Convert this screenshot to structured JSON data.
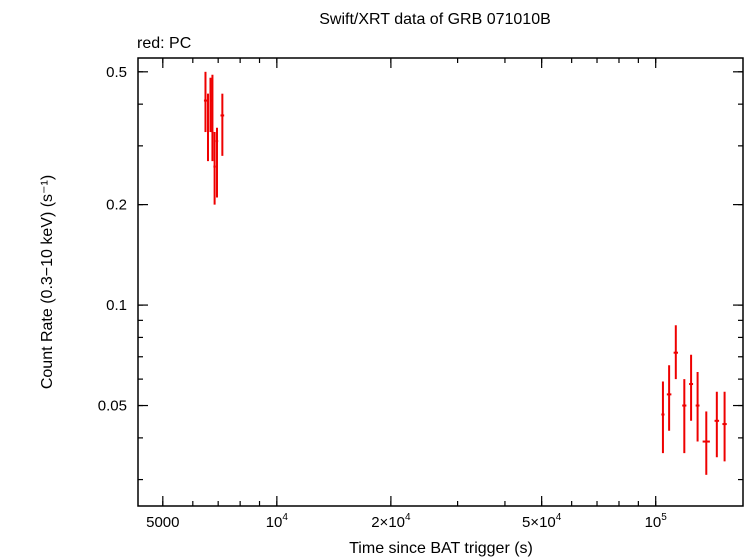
{
  "chart_data": {
    "type": "scatter",
    "title": "Swift/XRT data of GRB 071010B",
    "legend_text": "red: PC",
    "xlabel": "Time since BAT trigger (s)",
    "ylabel": "Count Rate (0.3−10 keV) (s⁻¹)",
    "x_scale": "log",
    "y_scale": "log",
    "xlim": [
      4300,
      170000
    ],
    "ylim": [
      0.025,
      0.55
    ],
    "grid": false,
    "x_ticks": [
      {
        "value": 5000,
        "label": "5000"
      },
      {
        "value": 10000,
        "base": "10",
        "exp": "4"
      },
      {
        "value": 20000,
        "base": "2×10",
        "exp": "4"
      },
      {
        "value": 50000,
        "base": "5×10",
        "exp": "4"
      },
      {
        "value": 100000,
        "base": "10",
        "exp": "5"
      }
    ],
    "y_ticks": [
      {
        "value": 0.5,
        "label": "0.5"
      },
      {
        "value": 0.2,
        "label": "0.2"
      },
      {
        "value": 0.1,
        "label": "0.1"
      },
      {
        "value": 0.05,
        "label": "0.05"
      }
    ],
    "series": [
      {
        "color": "#ee0000",
        "points": [
          {
            "x": 6480,
            "xlo": 6420,
            "xhi": 6540,
            "y": 0.41,
            "ylo": 0.33,
            "yhi": 0.5
          },
          {
            "x": 6580,
            "xlo": 6540,
            "xhi": 6620,
            "y": 0.34,
            "ylo": 0.27,
            "yhi": 0.43
          },
          {
            "x": 6680,
            "xlo": 6640,
            "xhi": 6720,
            "y": 0.41,
            "ylo": 0.33,
            "yhi": 0.48
          },
          {
            "x": 6760,
            "xlo": 6720,
            "xhi": 6800,
            "y": 0.33,
            "ylo": 0.27,
            "yhi": 0.49
          },
          {
            "x": 6850,
            "xlo": 6800,
            "xhi": 6900,
            "y": 0.26,
            "ylo": 0.2,
            "yhi": 0.33
          },
          {
            "x": 6950,
            "xlo": 6900,
            "xhi": 7000,
            "y": 0.31,
            "ylo": 0.21,
            "yhi": 0.34
          },
          {
            "x": 7180,
            "xlo": 7100,
            "xhi": 7260,
            "y": 0.37,
            "ylo": 0.28,
            "yhi": 0.43
          },
          {
            "x": 104500,
            "xlo": 103500,
            "xhi": 105500,
            "y": 0.047,
            "ylo": 0.036,
            "yhi": 0.059
          },
          {
            "x": 108500,
            "xlo": 107000,
            "xhi": 110000,
            "y": 0.054,
            "ylo": 0.042,
            "yhi": 0.066
          },
          {
            "x": 113000,
            "xlo": 111500,
            "xhi": 114500,
            "y": 0.072,
            "ylo": 0.06,
            "yhi": 0.087
          },
          {
            "x": 119000,
            "xlo": 117500,
            "xhi": 120500,
            "y": 0.05,
            "ylo": 0.036,
            "yhi": 0.06
          },
          {
            "x": 124000,
            "xlo": 122500,
            "xhi": 125500,
            "y": 0.058,
            "ylo": 0.045,
            "yhi": 0.071
          },
          {
            "x": 129000,
            "xlo": 127500,
            "xhi": 130500,
            "y": 0.05,
            "ylo": 0.039,
            "yhi": 0.063
          },
          {
            "x": 136000,
            "xlo": 133000,
            "xhi": 139000,
            "y": 0.039,
            "ylo": 0.031,
            "yhi": 0.048
          },
          {
            "x": 145000,
            "xlo": 143000,
            "xhi": 147000,
            "y": 0.045,
            "ylo": 0.035,
            "yhi": 0.055
          },
          {
            "x": 152000,
            "xlo": 150000,
            "xhi": 154000,
            "y": 0.044,
            "ylo": 0.034,
            "yhi": 0.055
          }
        ]
      }
    ]
  }
}
